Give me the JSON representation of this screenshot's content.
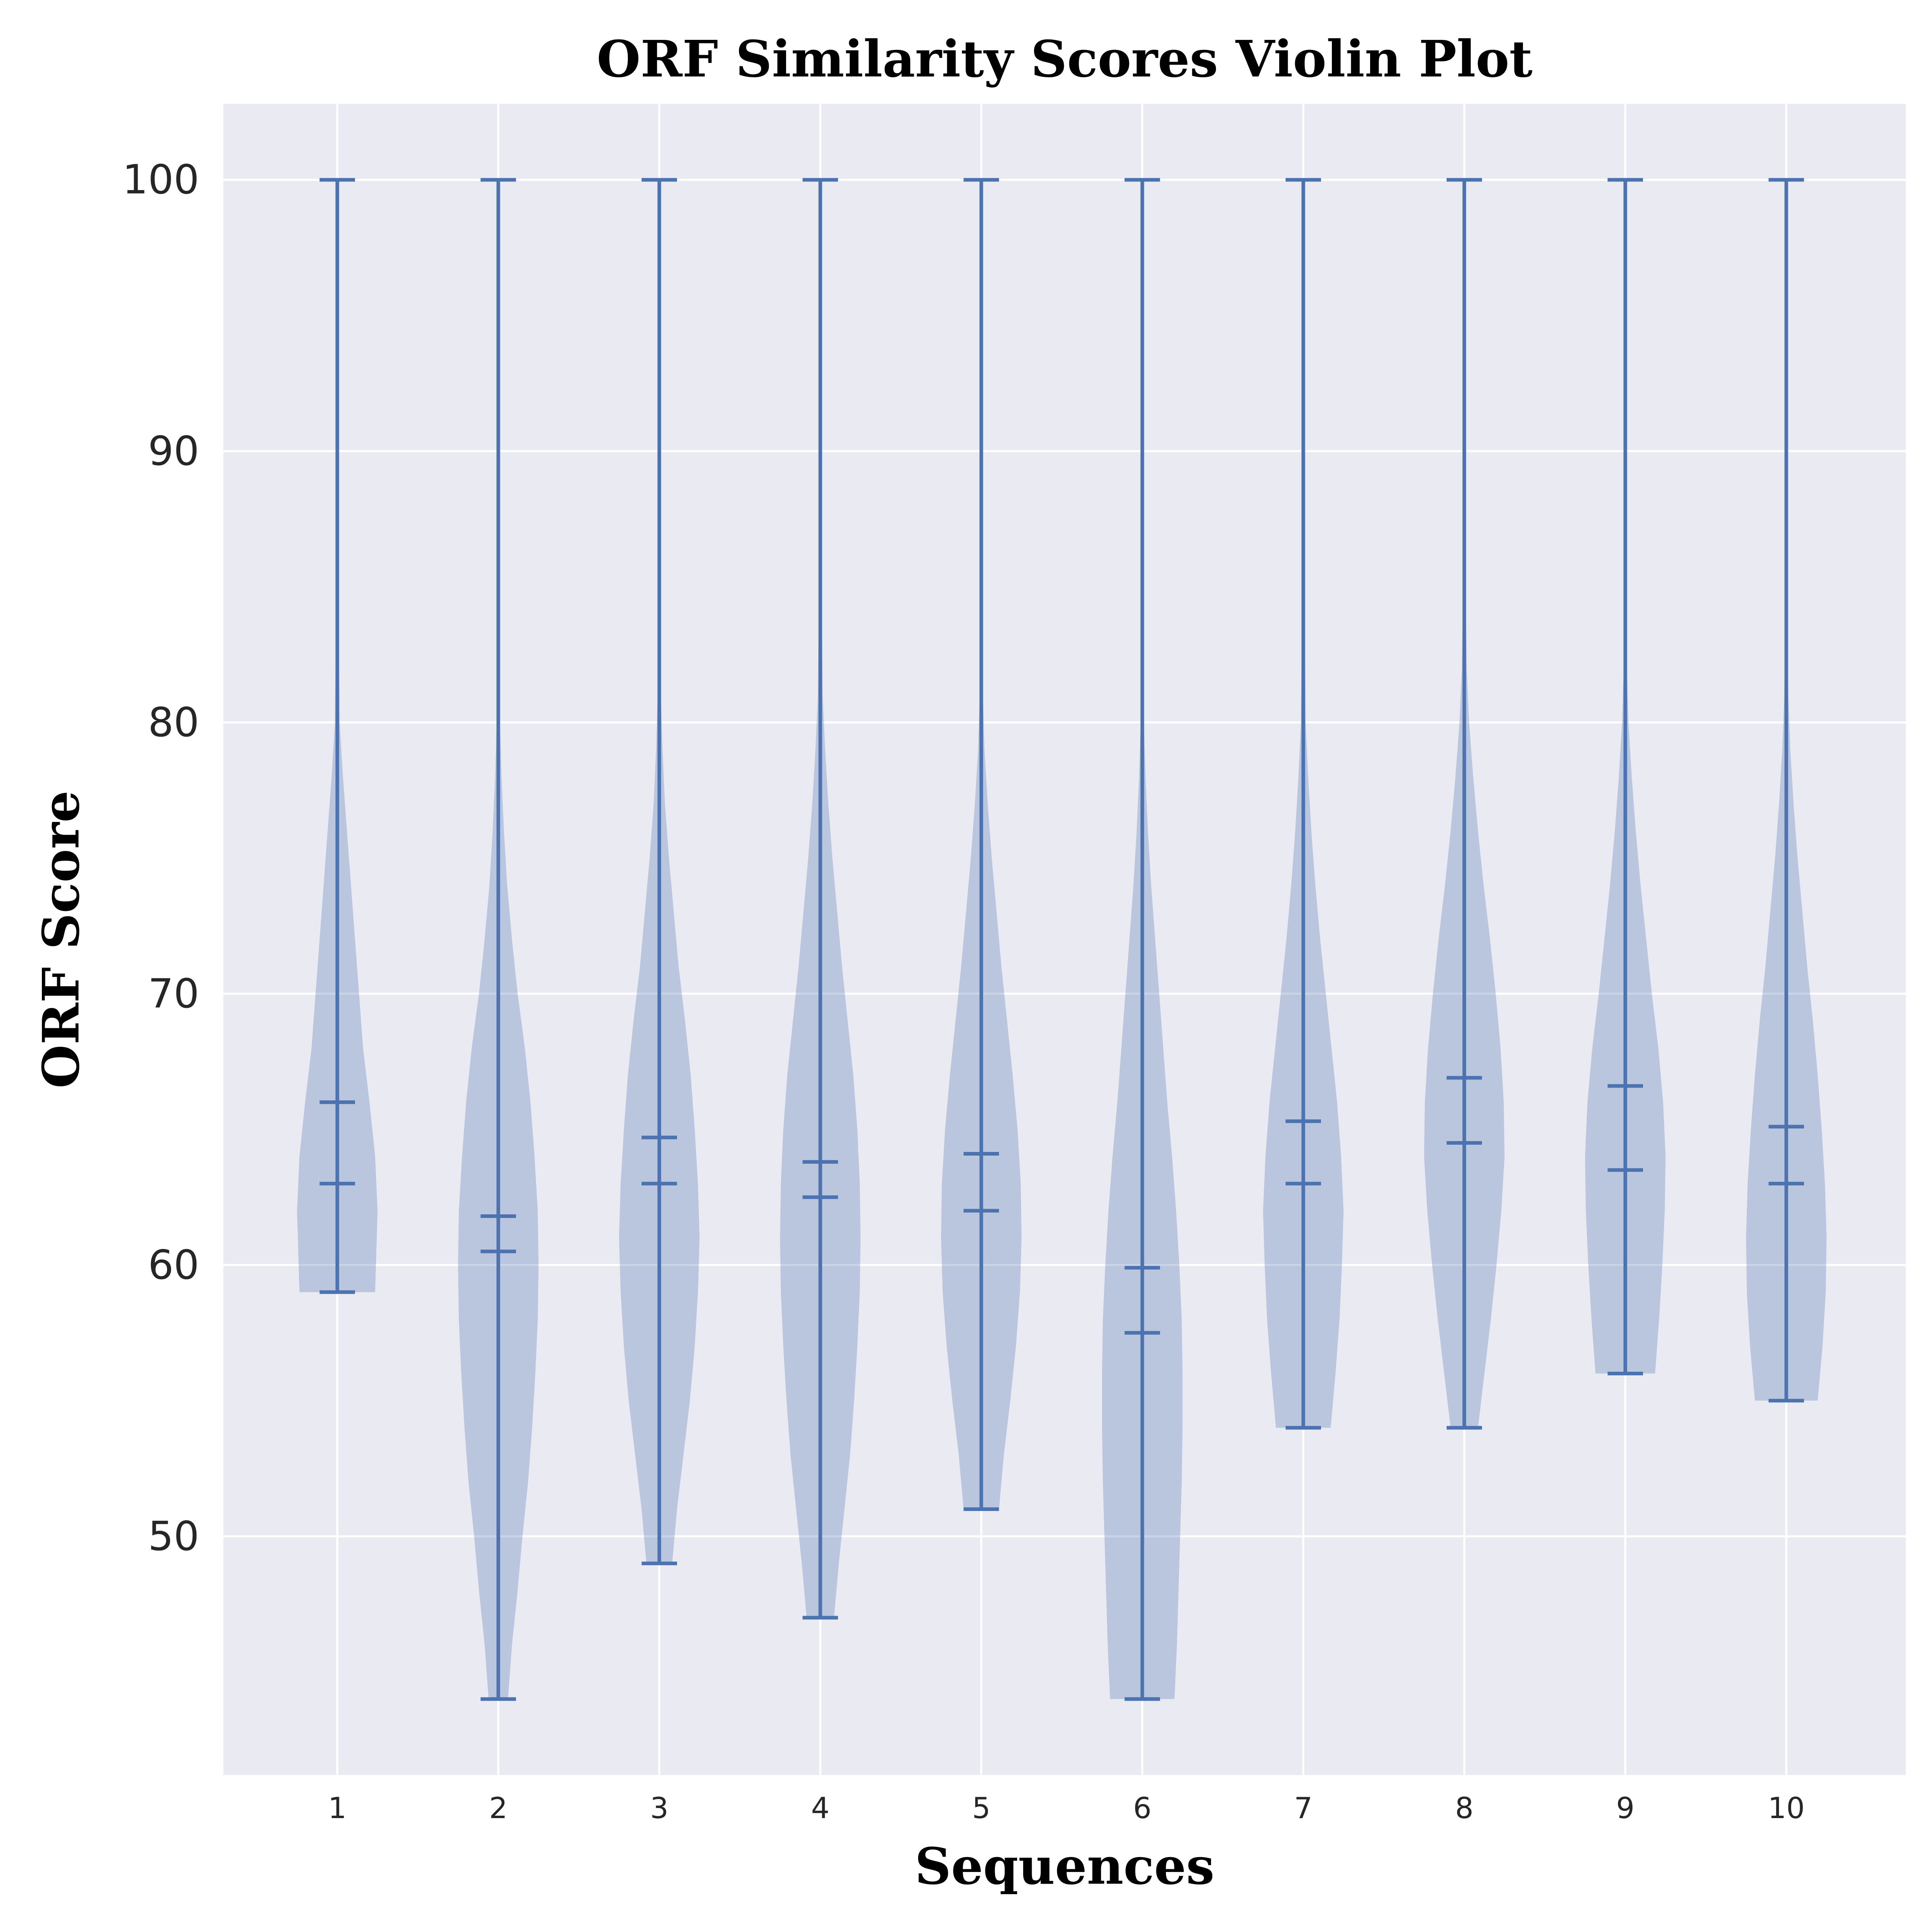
{
  "chart_data": {
    "type": "violin",
    "title": "ORF Similarity Scores Violin Plot",
    "xlabel": "Sequences",
    "ylabel": "ORF Score",
    "categories": [
      "1",
      "2",
      "3",
      "4",
      "5",
      "6",
      "7",
      "8",
      "9",
      "10"
    ],
    "yticks": [
      50,
      60,
      70,
      80,
      90,
      100
    ],
    "ytick_labels": [
      "50",
      "60",
      "70",
      "80",
      "90",
      "100"
    ],
    "ylim": [
      41.2,
      102.8
    ],
    "grid": true,
    "colors": {
      "background": "#eaeaf2",
      "grid": "#ffffff",
      "violin_fill": "#4c72b0",
      "violin_line": "#4c72b0"
    },
    "series": [
      {
        "category": "1",
        "min": 59,
        "max": 100,
        "median": 63,
        "mean": 66,
        "profile": [
          [
            59,
            0.47
          ],
          [
            60,
            0.48
          ],
          [
            62,
            0.5
          ],
          [
            64,
            0.47
          ],
          [
            66,
            0.4
          ],
          [
            68,
            0.32
          ],
          [
            70,
            0.27
          ],
          [
            72,
            0.22
          ],
          [
            74,
            0.17
          ],
          [
            76,
            0.12
          ],
          [
            78,
            0.07
          ],
          [
            80,
            0.03
          ],
          [
            85,
            0.012
          ],
          [
            90,
            0.006
          ],
          [
            100,
            0.004
          ]
        ]
      },
      {
        "category": "2",
        "min": 44,
        "max": 100,
        "median": 60.5,
        "mean": 61.8,
        "profile": [
          [
            44,
            0.12
          ],
          [
            46,
            0.17
          ],
          [
            48,
            0.24
          ],
          [
            50,
            0.3
          ],
          [
            52,
            0.37
          ],
          [
            54,
            0.42
          ],
          [
            56,
            0.46
          ],
          [
            58,
            0.49
          ],
          [
            60,
            0.5
          ],
          [
            62,
            0.49
          ],
          [
            64,
            0.45
          ],
          [
            66,
            0.4
          ],
          [
            68,
            0.33
          ],
          [
            70,
            0.24
          ],
          [
            72,
            0.17
          ],
          [
            74,
            0.11
          ],
          [
            76,
            0.07
          ],
          [
            78,
            0.04
          ],
          [
            80,
            0.02
          ],
          [
            85,
            0.01
          ],
          [
            90,
            0.006
          ],
          [
            100,
            0.004
          ]
        ]
      },
      {
        "category": "3",
        "min": 49,
        "max": 100,
        "median": 63,
        "mean": 64.7,
        "profile": [
          [
            49,
            0.16
          ],
          [
            51,
            0.22
          ],
          [
            53,
            0.3
          ],
          [
            55,
            0.38
          ],
          [
            57,
            0.44
          ],
          [
            59,
            0.48
          ],
          [
            61,
            0.5
          ],
          [
            63,
            0.48
          ],
          [
            65,
            0.44
          ],
          [
            67,
            0.39
          ],
          [
            69,
            0.32
          ],
          [
            71,
            0.24
          ],
          [
            73,
            0.18
          ],
          [
            75,
            0.12
          ],
          [
            77,
            0.07
          ],
          [
            79,
            0.04
          ],
          [
            81,
            0.02
          ],
          [
            85,
            0.01
          ],
          [
            90,
            0.006
          ],
          [
            100,
            0.004
          ]
        ]
      },
      {
        "category": "4",
        "min": 47,
        "max": 100,
        "median": 62.5,
        "mean": 63.8,
        "profile": [
          [
            47,
            0.17
          ],
          [
            49,
            0.23
          ],
          [
            51,
            0.3
          ],
          [
            53,
            0.37
          ],
          [
            55,
            0.42
          ],
          [
            57,
            0.46
          ],
          [
            59,
            0.49
          ],
          [
            61,
            0.5
          ],
          [
            63,
            0.49
          ],
          [
            65,
            0.46
          ],
          [
            67,
            0.41
          ],
          [
            69,
            0.34
          ],
          [
            71,
            0.27
          ],
          [
            73,
            0.21
          ],
          [
            75,
            0.15
          ],
          [
            77,
            0.1
          ],
          [
            79,
            0.06
          ],
          [
            81,
            0.03
          ],
          [
            85,
            0.015
          ],
          [
            90,
            0.008
          ],
          [
            100,
            0.004
          ]
        ]
      },
      {
        "category": "5",
        "min": 51,
        "max": 100,
        "median": 62,
        "mean": 64.1,
        "profile": [
          [
            51,
            0.22
          ],
          [
            53,
            0.28
          ],
          [
            55,
            0.36
          ],
          [
            57,
            0.43
          ],
          [
            59,
            0.48
          ],
          [
            61,
            0.5
          ],
          [
            63,
            0.49
          ],
          [
            65,
            0.45
          ],
          [
            67,
            0.39
          ],
          [
            69,
            0.32
          ],
          [
            71,
            0.25
          ],
          [
            73,
            0.19
          ],
          [
            75,
            0.13
          ],
          [
            77,
            0.08
          ],
          [
            79,
            0.04
          ],
          [
            81,
            0.02
          ],
          [
            85,
            0.01
          ],
          [
            90,
            0.006
          ],
          [
            100,
            0.004
          ]
        ]
      },
      {
        "category": "6",
        "min": 44,
        "max": 100,
        "median": 57.5,
        "mean": 59.9,
        "profile": [
          [
            44,
            0.4
          ],
          [
            46,
            0.43
          ],
          [
            48,
            0.45
          ],
          [
            50,
            0.47
          ],
          [
            52,
            0.49
          ],
          [
            54,
            0.5
          ],
          [
            56,
            0.5
          ],
          [
            58,
            0.49
          ],
          [
            60,
            0.46
          ],
          [
            62,
            0.42
          ],
          [
            64,
            0.37
          ],
          [
            66,
            0.31
          ],
          [
            68,
            0.26
          ],
          [
            70,
            0.21
          ],
          [
            72,
            0.16
          ],
          [
            74,
            0.11
          ],
          [
            76,
            0.07
          ],
          [
            78,
            0.04
          ],
          [
            80,
            0.02
          ],
          [
            85,
            0.01
          ],
          [
            90,
            0.006
          ],
          [
            100,
            0.004
          ]
        ]
      },
      {
        "category": "7",
        "min": 54,
        "max": 100,
        "median": 63,
        "mean": 65.3,
        "profile": [
          [
            54,
            0.34
          ],
          [
            56,
            0.4
          ],
          [
            58,
            0.45
          ],
          [
            60,
            0.48
          ],
          [
            62,
            0.5
          ],
          [
            64,
            0.47
          ],
          [
            66,
            0.42
          ],
          [
            68,
            0.35
          ],
          [
            70,
            0.28
          ],
          [
            72,
            0.21
          ],
          [
            74,
            0.15
          ],
          [
            76,
            0.1
          ],
          [
            78,
            0.06
          ],
          [
            80,
            0.03
          ],
          [
            85,
            0.012
          ],
          [
            90,
            0.006
          ],
          [
            100,
            0.004
          ]
        ]
      },
      {
        "category": "8",
        "min": 54,
        "max": 100,
        "median": 64.5,
        "mean": 66.9,
        "profile": [
          [
            54,
            0.17
          ],
          [
            56,
            0.25
          ],
          [
            58,
            0.33
          ],
          [
            60,
            0.4
          ],
          [
            62,
            0.46
          ],
          [
            64,
            0.5
          ],
          [
            66,
            0.49
          ],
          [
            68,
            0.45
          ],
          [
            70,
            0.39
          ],
          [
            72,
            0.32
          ],
          [
            74,
            0.24
          ],
          [
            76,
            0.17
          ],
          [
            78,
            0.11
          ],
          [
            80,
            0.06
          ],
          [
            82,
            0.03
          ],
          [
            85,
            0.015
          ],
          [
            90,
            0.007
          ],
          [
            100,
            0.004
          ]
        ]
      },
      {
        "category": "9",
        "min": 56,
        "max": 100,
        "median": 63.5,
        "mean": 66.6,
        "profile": [
          [
            56,
            0.37
          ],
          [
            58,
            0.42
          ],
          [
            60,
            0.46
          ],
          [
            62,
            0.49
          ],
          [
            64,
            0.5
          ],
          [
            66,
            0.47
          ],
          [
            68,
            0.41
          ],
          [
            70,
            0.33
          ],
          [
            72,
            0.26
          ],
          [
            74,
            0.19
          ],
          [
            76,
            0.13
          ],
          [
            78,
            0.08
          ],
          [
            80,
            0.04
          ],
          [
            82,
            0.02
          ],
          [
            85,
            0.01
          ],
          [
            90,
            0.006
          ],
          [
            100,
            0.004
          ]
        ]
      },
      {
        "category": "10",
        "min": 55,
        "max": 100,
        "median": 63,
        "mean": 65.1,
        "profile": [
          [
            55,
            0.39
          ],
          [
            57,
            0.45
          ],
          [
            59,
            0.49
          ],
          [
            61,
            0.5
          ],
          [
            63,
            0.48
          ],
          [
            65,
            0.44
          ],
          [
            67,
            0.39
          ],
          [
            69,
            0.33
          ],
          [
            71,
            0.26
          ],
          [
            73,
            0.2
          ],
          [
            75,
            0.14
          ],
          [
            77,
            0.09
          ],
          [
            79,
            0.05
          ],
          [
            81,
            0.025
          ],
          [
            85,
            0.012
          ],
          [
            90,
            0.006
          ],
          [
            100,
            0.004
          ]
        ]
      }
    ]
  }
}
